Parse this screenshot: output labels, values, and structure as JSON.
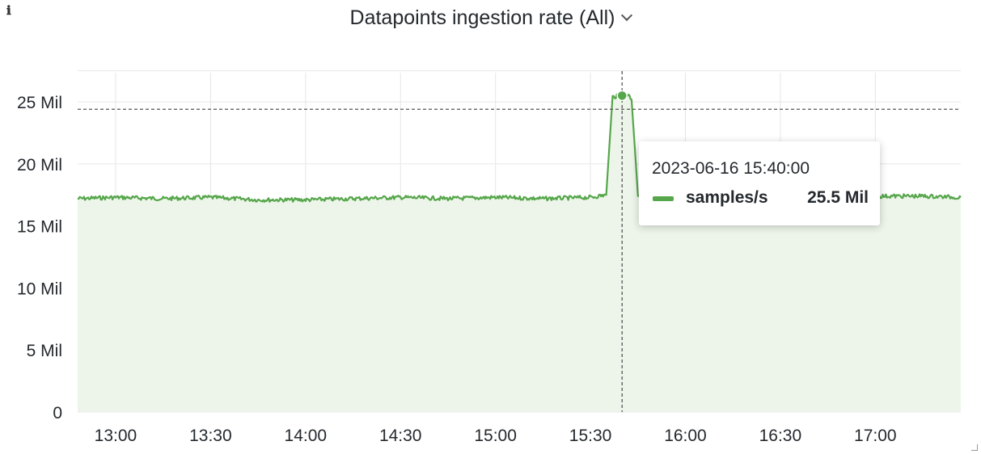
{
  "panel": {
    "title": "Datapoints ingestion rate (All)",
    "info_icon": "ℹ"
  },
  "tooltip": {
    "time": "2023-06-16 15:40:00",
    "series_name": "samples/s",
    "value": "25.5 Mil"
  },
  "colors": {
    "series": "#56a64b",
    "fill": "#edf5ea",
    "grid": "#e6e6e6",
    "crosshair": "#555555"
  },
  "chart_data": {
    "type": "area",
    "title": "Datapoints ingestion rate (All)",
    "xlabel": "",
    "ylabel": "",
    "x_ticks": [
      "13:00",
      "13:30",
      "14:00",
      "14:30",
      "15:00",
      "15:30",
      "16:00",
      "16:30",
      "17:00"
    ],
    "y_ticks": [
      "0",
      "5 Mil",
      "10 Mil",
      "15 Mil",
      "20 Mil",
      "25 Mil"
    ],
    "xlim": [
      "12:48",
      "17:27"
    ],
    "ylim": [
      0,
      28000000
    ],
    "grid": true,
    "legend": "none",
    "crosshair_x": "15:40",
    "crosshair_y": 24400000,
    "series": [
      {
        "name": "samples/s",
        "points": [
          [
            "12:48",
            17200000
          ],
          [
            "13:00",
            17300000
          ],
          [
            "13:15",
            17200000
          ],
          [
            "13:30",
            17300000
          ],
          [
            "13:45",
            17100000
          ],
          [
            "14:00",
            17100000
          ],
          [
            "14:15",
            17200000
          ],
          [
            "14:30",
            17300000
          ],
          [
            "14:45",
            17200000
          ],
          [
            "15:00",
            17300000
          ],
          [
            "15:15",
            17200000
          ],
          [
            "15:30",
            17300000
          ],
          [
            "15:35",
            17500000
          ],
          [
            "15:37",
            25400000
          ],
          [
            "15:40",
            25500000
          ],
          [
            "15:42",
            25600000
          ],
          [
            "15:43",
            25200000
          ],
          [
            "15:45",
            17500000
          ],
          [
            "16:00",
            17500000
          ],
          [
            "16:15",
            17400000
          ],
          [
            "16:30",
            17400000
          ],
          [
            "16:45",
            17400000
          ],
          [
            "17:00",
            17400000
          ],
          [
            "17:15",
            17400000
          ],
          [
            "17:27",
            17300000
          ]
        ]
      }
    ]
  }
}
